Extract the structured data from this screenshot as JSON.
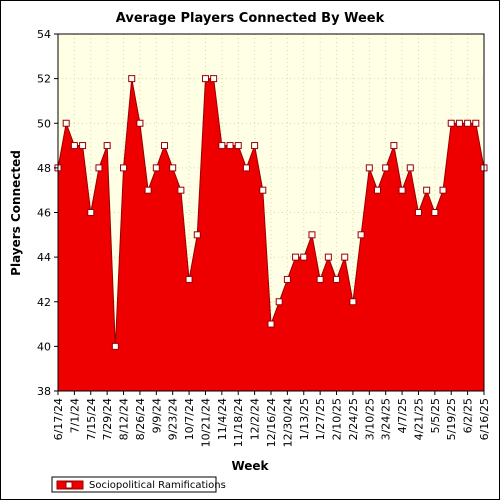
{
  "chart_data": {
    "type": "area",
    "title": "Average Players Connected By Week",
    "xlabel": "Week",
    "ylabel": "Players Connected",
    "ylim": [
      38,
      54
    ],
    "yticks": [
      38,
      40,
      42,
      44,
      46,
      48,
      50,
      52,
      54
    ],
    "grid": true,
    "legend_position": "bottom-left",
    "colors": {
      "plot_background": "#ffffe6",
      "area_fill": "#ee0000",
      "area_stroke": "#990000",
      "marker_fill": "#ffffff",
      "grid": "#d8d8b0"
    },
    "tick_labels": [
      "6/17/24",
      "7/1/24",
      "7/15/24",
      "7/29/24",
      "8/12/24",
      "8/26/24",
      "9/9/24",
      "9/23/24",
      "10/7/24",
      "10/21/24",
      "11/4/24",
      "11/18/24",
      "12/2/24",
      "12/16/24",
      "12/30/24",
      "1/13/25",
      "1/27/25",
      "2/10/25",
      "2/24/25",
      "3/10/25",
      "3/24/25",
      "4/7/25",
      "4/21/25",
      "5/5/25",
      "5/19/25",
      "6/2/25",
      "6/16/25"
    ],
    "series": [
      {
        "name": "Sociopolitical Ramifications",
        "values": [
          48,
          50,
          49,
          49,
          46,
          48,
          49,
          40,
          48,
          52,
          50,
          47,
          48,
          49,
          48,
          47,
          43,
          45,
          52,
          52,
          49,
          49,
          49,
          48,
          49,
          47,
          41,
          42,
          43,
          44,
          44,
          45,
          43,
          44,
          43,
          44,
          42,
          45,
          48,
          47,
          48,
          49,
          47,
          48,
          46,
          47,
          46,
          47,
          50,
          50,
          50,
          50,
          48
        ]
      }
    ]
  }
}
